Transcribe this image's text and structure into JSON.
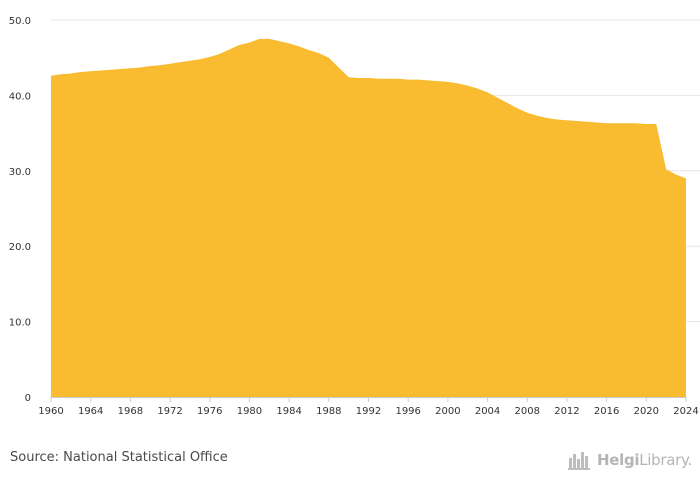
{
  "chart_data": {
    "type": "area",
    "title": "",
    "xlabel": "",
    "ylabel": "",
    "xlim": [
      1960,
      2024
    ],
    "ylim": [
      0,
      50
    ],
    "grid": true,
    "legend": "none",
    "color": "#f9bb2f",
    "y_ticks": [
      0,
      10,
      20,
      30,
      40,
      50
    ],
    "y_tick_labels": [
      "0",
      "10.0",
      "20.0",
      "30.0",
      "40.0",
      "50.0"
    ],
    "x_ticks": [
      1960,
      1964,
      1968,
      1972,
      1976,
      1980,
      1984,
      1988,
      1992,
      1996,
      2000,
      2004,
      2008,
      2012,
      2016,
      2020,
      2024
    ],
    "x_tick_labels": [
      "1960",
      "1964",
      "1968",
      "1972",
      "1976",
      "1980",
      "1984",
      "1988",
      "1992",
      "1996",
      "2000",
      "2004",
      "2008",
      "2012",
      "2016",
      "2020",
      "2024"
    ],
    "series": [
      {
        "name": "Value",
        "x": [
          1960,
          1961,
          1962,
          1963,
          1964,
          1965,
          1966,
          1967,
          1968,
          1969,
          1970,
          1971,
          1972,
          1973,
          1974,
          1975,
          1976,
          1977,
          1978,
          1979,
          1980,
          1981,
          1982,
          1983,
          1984,
          1985,
          1986,
          1987,
          1988,
          1989,
          1990,
          1991,
          1992,
          1993,
          1994,
          1995,
          1996,
          1997,
          1998,
          1999,
          2000,
          2001,
          2002,
          2003,
          2004,
          2005,
          2006,
          2007,
          2008,
          2009,
          2010,
          2011,
          2012,
          2013,
          2014,
          2015,
          2016,
          2017,
          2018,
          2019,
          2020,
          2021,
          2022,
          2023,
          2024
        ],
        "values": [
          42.6,
          42.8,
          42.9,
          43.1,
          43.2,
          43.3,
          43.4,
          43.5,
          43.6,
          43.7,
          43.9,
          44.0,
          44.2,
          44.4,
          44.6,
          44.8,
          45.1,
          45.5,
          46.1,
          46.7,
          47.0,
          47.5,
          47.5,
          47.2,
          46.9,
          46.5,
          46.0,
          45.6,
          45.0,
          43.7,
          42.4,
          42.3,
          42.3,
          42.2,
          42.2,
          42.2,
          42.1,
          42.1,
          42.0,
          41.9,
          41.8,
          41.6,
          41.3,
          40.9,
          40.4,
          39.7,
          39.0,
          38.3,
          37.7,
          37.3,
          37.0,
          36.8,
          36.7,
          36.6,
          36.5,
          36.4,
          36.3,
          36.3,
          36.3,
          36.3,
          36.2,
          36.2,
          30.2,
          29.5,
          29.0
        ]
      }
    ]
  },
  "footer": {
    "source": "Source: National Statistical Office",
    "brand_bold": "Helgi",
    "brand_light": "Library."
  }
}
